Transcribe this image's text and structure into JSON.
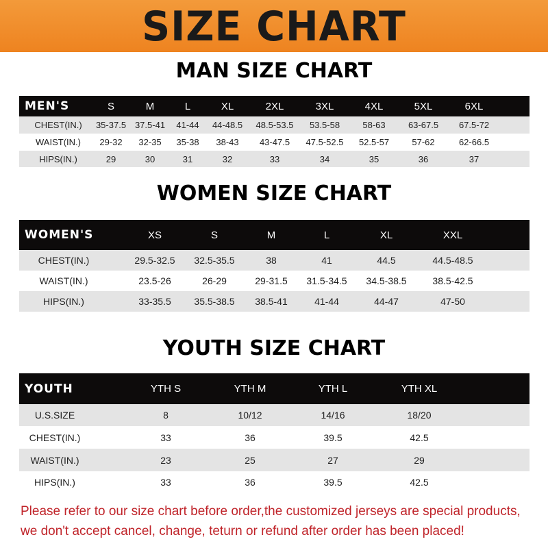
{
  "banner_title": "SIZE CHART",
  "men": {
    "title": "MAN SIZE CHART",
    "header": [
      "MEN'S",
      "S",
      "M",
      "L",
      "XL",
      "2XL",
      "3XL",
      "4XL",
      "5XL",
      "6XL"
    ],
    "rows": [
      [
        "CHEST(IN.)",
        "35-37.5",
        "37.5-41",
        "41-44",
        "44-48.5",
        "48.5-53.5",
        "53.5-58",
        "58-63",
        "63-67.5",
        "67.5-72"
      ],
      [
        "WAIST(IN.)",
        "29-32",
        "32-35",
        "35-38",
        "38-43",
        "43-47.5",
        "47.5-52.5",
        "52.5-57",
        "57-62",
        "62-66.5"
      ],
      [
        "HIPS(IN.)",
        "29",
        "30",
        "31",
        "32",
        "33",
        "34",
        "35",
        "36",
        "37"
      ]
    ]
  },
  "women": {
    "title": "WOMEN SIZE CHART",
    "header": [
      "WOMEN'S",
      "XS",
      "S",
      "M",
      "L",
      "XL",
      "XXL"
    ],
    "rows": [
      [
        "CHEST(IN.)",
        "29.5-32.5",
        "32.5-35.5",
        "38",
        "41",
        "44.5",
        "44.5-48.5"
      ],
      [
        "WAIST(IN.)",
        "23.5-26",
        "26-29",
        "29-31.5",
        "31.5-34.5",
        "34.5-38.5",
        "38.5-42.5"
      ],
      [
        "HIPS(IN.)",
        "33-35.5",
        "35.5-38.5",
        "38.5-41",
        "41-44",
        "44-47",
        "47-50"
      ]
    ]
  },
  "youth": {
    "title": "YOUTH SIZE CHART",
    "header": [
      "YOUTH",
      "YTH S",
      "YTH M",
      "YTH L",
      "YTH XL"
    ],
    "rows": [
      [
        "U.S.SIZE",
        "8",
        "10/12",
        "14/16",
        "18/20"
      ],
      [
        "CHEST(IN.)",
        "33",
        "36",
        "39.5",
        "42.5"
      ],
      [
        "WAIST(IN.)",
        "23",
        "25",
        "27",
        "29"
      ],
      [
        "HIPS(IN.)",
        "33",
        "36",
        "39.5",
        "42.5"
      ]
    ]
  },
  "notice": {
    "line1": "Please refer to our size chart before order,the customized jerseys are special products,",
    "line2": "we don't accept cancel, change, teturn or refund after order has been placed!"
  },
  "colors": {
    "banner": "#ee8320",
    "header_row": "#0d0b0b",
    "shaded_row": "#e4e4e4",
    "notice": "#c0242a"
  }
}
